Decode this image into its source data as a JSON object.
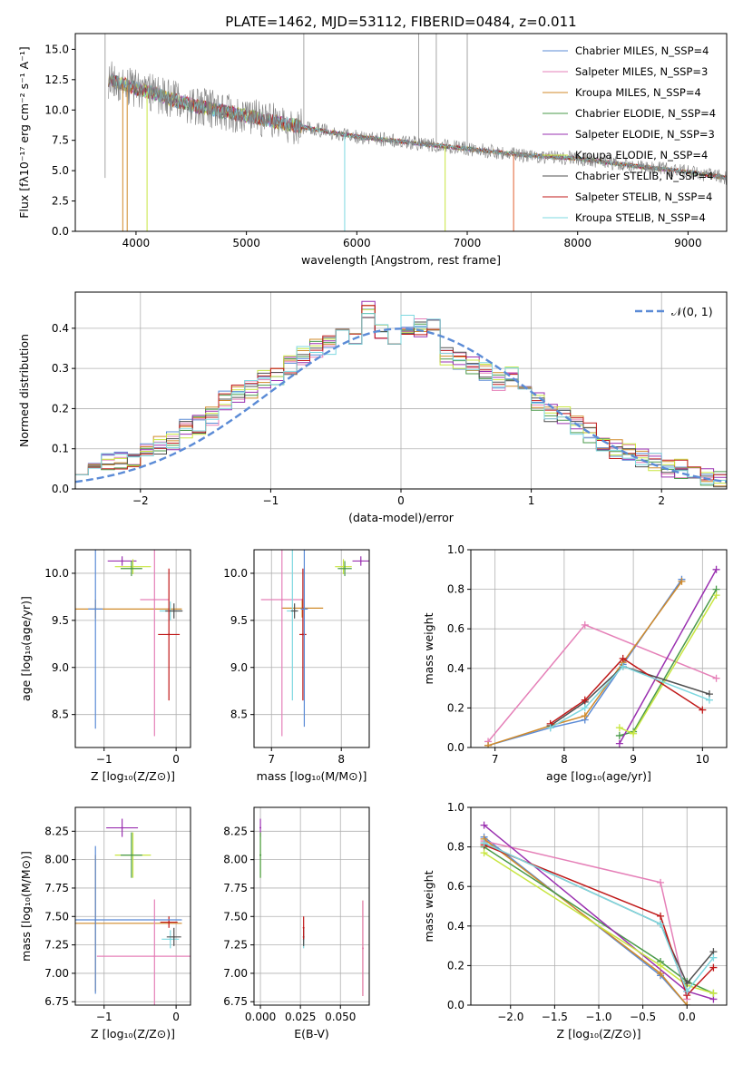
{
  "chart_data": [
    {
      "id": "spectrum",
      "type": "line",
      "title": "PLATE=1462, MJD=53112, FIBERID=0484, z=0.011",
      "xlabel": "wavelength [Angstrom, rest frame]",
      "ylabel": "Flux [fλ10⁻¹⁷ erg cm⁻² s⁻¹ A⁻¹]",
      "xlim": [
        3450,
        9350
      ],
      "ylim": [
        0,
        16.3
      ],
      "xticks": [
        4000,
        5000,
        6000,
        7000,
        8000,
        9000
      ],
      "yticks": [
        0.0,
        2.5,
        5.0,
        7.5,
        10.0,
        12.5,
        15.0
      ],
      "legend_position": "top-right",
      "data_envelope": {
        "x": [
          3750,
          4000,
          4500,
          5000,
          5500,
          6000,
          6500,
          7000,
          7500,
          8000,
          8500,
          9000,
          9350
        ],
        "y": [
          12.5,
          11.8,
          10.4,
          9.5,
          8.6,
          7.8,
          7.3,
          6.8,
          6.3,
          6.0,
          5.4,
          4.9,
          4.4
        ]
      },
      "series": [
        {
          "name": "Chabrier MILES, N_SSP=4",
          "color": "#5b8bd6"
        },
        {
          "name": "Salpeter MILES, N_SSP=3",
          "color": "#e580b8"
        },
        {
          "name": "Kroupa MILES, N_SSP=4",
          "color": "#d08a2a"
        },
        {
          "name": "Chabrier ELODIE, N_SSP=4",
          "color": "#4a9a4a"
        },
        {
          "name": "Salpeter ELODIE, N_SSP=3",
          "color": "#9a30b0"
        },
        {
          "name": "Kroupa ELODIE, N_SSP=4",
          "color": "#c8e640"
        },
        {
          "name": "Chabrier STELIB, N_SSP=4",
          "color": "#505050"
        },
        {
          "name": "Salpeter STELIB, N_SSP=4",
          "color": "#c01a1a"
        },
        {
          "name": "Kroupa STELIB, N_SSP=4",
          "color": "#7ed8e0"
        }
      ]
    },
    {
      "id": "residuals",
      "type": "line",
      "xlabel": "(data-model)/error",
      "ylabel": "Normed distribution",
      "xlim": [
        -2.5,
        2.5
      ],
      "ylim": [
        0,
        0.49
      ],
      "xticks": [
        -2,
        -1,
        0,
        1,
        2
      ],
      "yticks": [
        0.0,
        0.1,
        0.2,
        0.3,
        0.4
      ],
      "legend": "𝒩(0, 1)",
      "legend_position": "top-right",
      "gaussian_color": "#5b8bd6",
      "hist_x": [
        -2.5,
        -2.4,
        -2.3,
        -2.2,
        -2.1,
        -2.0,
        -1.9,
        -1.8,
        -1.7,
        -1.6,
        -1.5,
        -1.4,
        -1.3,
        -1.2,
        -1.1,
        -1.0,
        -0.9,
        -0.8,
        -0.7,
        -0.6,
        -0.5,
        -0.4,
        -0.3,
        -0.2,
        -0.1,
        0.0,
        0.1,
        0.2,
        0.3,
        0.4,
        0.5,
        0.6,
        0.7,
        0.8,
        0.9,
        1.0,
        1.1,
        1.2,
        1.3,
        1.4,
        1.5,
        1.6,
        1.7,
        1.8,
        1.9,
        2.0,
        2.1,
        2.2,
        2.3,
        2.4
      ],
      "hist_y": [
        0.06,
        0.06,
        0.07,
        0.07,
        0.08,
        0.09,
        0.11,
        0.12,
        0.15,
        0.16,
        0.18,
        0.22,
        0.24,
        0.25,
        0.27,
        0.28,
        0.31,
        0.33,
        0.35,
        0.36,
        0.38,
        0.37,
        0.45,
        0.39,
        0.37,
        0.41,
        0.4,
        0.41,
        0.33,
        0.32,
        0.31,
        0.29,
        0.27,
        0.28,
        0.24,
        0.22,
        0.19,
        0.18,
        0.16,
        0.14,
        0.11,
        0.1,
        0.09,
        0.08,
        0.07,
        0.05,
        0.05,
        0.04,
        0.03,
        0.02
      ]
    },
    {
      "id": "age_vs_Z",
      "type": "scatter",
      "xlabel": "Z [log₁₀(Z/Z⊙)]",
      "ylabel": "age  [log₁₀(age/yr)]",
      "xlim": [
        -1.4,
        0.2
      ],
      "ylim": [
        8.15,
        10.25
      ],
      "xticks": [
        -1,
        0
      ],
      "yticks": [
        8.5,
        9.0,
        9.5,
        10.0
      ],
      "points": [
        {
          "x": -0.75,
          "y": 10.13,
          "xerr": 0.2,
          "yerr": 0.05,
          "color": "#9a30b0"
        },
        {
          "x": -0.6,
          "y": 10.07,
          "xerr": 0.25,
          "yerr": 0.08,
          "color": "#c8e640"
        },
        {
          "x": -0.62,
          "y": 10.05,
          "xerr": 0.15,
          "yerr": 0.08,
          "color": "#4a9a4a"
        },
        {
          "x": -1.12,
          "y": 9.62,
          "xerr": 1.2,
          "yerr": 0.1,
          "color": "#d08a2a"
        },
        {
          "x": -0.3,
          "y": 9.72,
          "xerr": 0.2,
          "yerr": 1.45,
          "color": "#e580b8"
        },
        {
          "x": -0.08,
          "y": 9.6,
          "xerr": 0.15,
          "yerr": 0.1,
          "color": "#7ed8e0"
        },
        {
          "x": -0.03,
          "y": 9.6,
          "xerr": 0.12,
          "yerr": 0.08,
          "color": "#505050"
        },
        {
          "x": -0.1,
          "y": 9.35,
          "xerr": 0.15,
          "yerr": 0.7,
          "color": "#c01a1a"
        },
        {
          "x": -1.12,
          "y": 9.62,
          "xerr": 0.1,
          "yerr": 1.27,
          "color": "#5b8bd6"
        }
      ]
    },
    {
      "id": "age_vs_mass",
      "type": "scatter",
      "xlabel": "mass [log₁₀(M/M⊙)]",
      "ylabel": "",
      "xlim": [
        6.75,
        8.4
      ],
      "ylim": [
        8.15,
        10.25
      ],
      "xticks": [
        7,
        8
      ],
      "yticks": [
        8.5,
        9.0,
        9.5,
        10.0
      ],
      "points": [
        {
          "x": 8.28,
          "y": 10.13,
          "xerr": 0.12,
          "yerr": 0.05,
          "color": "#9a30b0"
        },
        {
          "x": 8.03,
          "y": 10.07,
          "xerr": 0.12,
          "yerr": 0.08,
          "color": "#c8e640"
        },
        {
          "x": 8.05,
          "y": 10.05,
          "xerr": 0.1,
          "yerr": 0.08,
          "color": "#4a9a4a"
        },
        {
          "x": 7.44,
          "y": 9.63,
          "xerr": 0.3,
          "yerr": 0.1,
          "color": "#d08a2a"
        },
        {
          "x": 7.15,
          "y": 9.72,
          "xerr": 0.3,
          "yerr": 1.45,
          "color": "#e580b8"
        },
        {
          "x": 7.3,
          "y": 9.6,
          "xerr": 0.08,
          "yerr": 0.95,
          "color": "#7ed8e0"
        },
        {
          "x": 7.33,
          "y": 9.6,
          "xerr": 0.05,
          "yerr": 0.08,
          "color": "#505050"
        },
        {
          "x": 7.45,
          "y": 9.35,
          "xerr": 0.05,
          "yerr": 0.7,
          "color": "#c01a1a"
        },
        {
          "x": 7.47,
          "y": 9.62,
          "xerr": 0.05,
          "yerr": 1.25,
          "color": "#5b8bd6"
        }
      ]
    },
    {
      "id": "weight_vs_age",
      "type": "line",
      "xlabel": "age  [log₁₀(age/yr)]",
      "ylabel": "mass weight",
      "xlim": [
        6.65,
        10.35
      ],
      "ylim": [
        0,
        1
      ],
      "xticks": [
        7,
        8,
        9,
        10
      ],
      "yticks": [
        0.0,
        0.2,
        0.4,
        0.6,
        0.8,
        1.0
      ],
      "series": [
        {
          "color": "#5b8bd6",
          "x": [
            6.9,
            7.8,
            8.3,
            8.85,
            9.7
          ],
          "y": [
            0.01,
            0.1,
            0.14,
            0.42,
            0.85
          ]
        },
        {
          "color": "#e580b8",
          "x": [
            6.9,
            8.3,
            10.2
          ],
          "y": [
            0.03,
            0.62,
            0.35
          ]
        },
        {
          "color": "#d08a2a",
          "x": [
            6.9,
            7.8,
            8.3,
            8.85,
            9.7
          ],
          "y": [
            0.01,
            0.11,
            0.16,
            0.43,
            0.84
          ]
        },
        {
          "color": "#4a9a4a",
          "x": [
            8.8,
            9.0,
            10.2
          ],
          "y": [
            0.06,
            0.08,
            0.8
          ]
        },
        {
          "color": "#9a30b0",
          "x": [
            8.8,
            10.2
          ],
          "y": [
            0.02,
            0.9
          ]
        },
        {
          "color": "#c8e640",
          "x": [
            8.8,
            9.0,
            10.2
          ],
          "y": [
            0.1,
            0.07,
            0.77
          ]
        },
        {
          "color": "#505050",
          "x": [
            7.8,
            8.3,
            8.85,
            10.1
          ],
          "y": [
            0.11,
            0.23,
            0.41,
            0.27
          ]
        },
        {
          "color": "#c01a1a",
          "x": [
            7.8,
            8.3,
            8.85,
            10.0
          ],
          "y": [
            0.12,
            0.24,
            0.45,
            0.19
          ]
        },
        {
          "color": "#7ed8e0",
          "x": [
            7.8,
            8.3,
            8.85,
            10.1
          ],
          "y": [
            0.1,
            0.2,
            0.41,
            0.24
          ]
        }
      ]
    },
    {
      "id": "mass_vs_Z",
      "type": "scatter",
      "xlabel": "Z [log₁₀(Z/Z⊙)]",
      "ylabel": "mass [log₁₀(M/M⊙)]",
      "xlim": [
        -1.4,
        0.2
      ],
      "ylim": [
        6.72,
        8.46
      ],
      "xticks": [
        -1,
        0
      ],
      "yticks": [
        6.75,
        7.0,
        7.25,
        7.5,
        7.75,
        8.0,
        8.25
      ],
      "points": [
        {
          "x": -0.75,
          "y": 8.28,
          "xerr": 0.22,
          "yerr": 0.08,
          "color": "#9a30b0"
        },
        {
          "x": -0.6,
          "y": 8.04,
          "xerr": 0.25,
          "yerr": 0.2,
          "color": "#c8e640"
        },
        {
          "x": -0.62,
          "y": 8.04,
          "xerr": 0.15,
          "yerr": 0.2,
          "color": "#4a9a4a"
        },
        {
          "x": -1.12,
          "y": 7.44,
          "xerr": 1.2,
          "yerr": 0.6,
          "color": "#d08a2a"
        },
        {
          "x": -0.3,
          "y": 7.15,
          "xerr": 0.8,
          "yerr": 0.5,
          "color": "#e580b8"
        },
        {
          "x": -0.08,
          "y": 7.3,
          "xerr": 0.12,
          "yerr": 0.08,
          "color": "#7ed8e0"
        },
        {
          "x": -0.03,
          "y": 7.32,
          "xerr": 0.1,
          "yerr": 0.08,
          "color": "#505050"
        },
        {
          "x": -0.1,
          "y": 7.45,
          "xerr": 0.12,
          "yerr": 0.05,
          "color": "#c01a1a"
        },
        {
          "x": -1.12,
          "y": 7.47,
          "xerr": 1.2,
          "yerr": 0.65,
          "color": "#5b8bd6"
        }
      ]
    },
    {
      "id": "mass_vs_ebv",
      "type": "scatter",
      "xlabel": "E(B-V)",
      "ylabel": "",
      "xlim": [
        -0.004,
        0.068
      ],
      "ylim": [
        6.72,
        8.46
      ],
      "xticks": [
        0.0,
        0.025,
        0.05
      ],
      "tick_labels": [
        "0.000",
        "0.025",
        "0.050"
      ],
      "yticks": [
        6.75,
        7.0,
        7.25,
        7.5,
        7.75,
        8.0,
        8.25
      ],
      "points": [
        {
          "x": 0.0,
          "y": 8.28,
          "yerr": 0.08,
          "color": "#9a30b0"
        },
        {
          "x": 0.0,
          "y": 8.04,
          "yerr": 0.2,
          "color": "#c8e640"
        },
        {
          "x": 0.0,
          "y": 8.04,
          "yerr": 0.2,
          "color": "#4a9a4a"
        },
        {
          "x": 0.027,
          "y": 7.3,
          "yerr": 0.08,
          "color": "#7ed8e0"
        },
        {
          "x": 0.027,
          "y": 7.32,
          "yerr": 0.08,
          "color": "#505050"
        },
        {
          "x": 0.027,
          "y": 7.4,
          "yerr": 0.1,
          "color": "#c01a1a"
        },
        {
          "x": 0.064,
          "y": 7.22,
          "yerr": 0.42,
          "color": "#d08a2a"
        },
        {
          "x": 0.064,
          "y": 7.22,
          "yerr": 0.42,
          "color": "#e580b8"
        }
      ]
    },
    {
      "id": "weight_vs_Z",
      "type": "line",
      "xlabel": "Z [log₁₀(Z/Z⊙)]",
      "ylabel": "mass weight",
      "xlim": [
        -2.45,
        0.45
      ],
      "ylim": [
        0,
        1
      ],
      "xticks": [
        -2.0,
        -1.5,
        -1.0,
        -0.5,
        0.0
      ],
      "tick_labels": [
        "−2.0",
        "−1.5",
        "−1.0",
        "−0.5",
        "0.0"
      ],
      "yticks": [
        0.0,
        0.2,
        0.4,
        0.6,
        0.8,
        1.0
      ],
      "series": [
        {
          "color": "#5b8bd6",
          "x": [
            -2.3,
            -0.3,
            0.0
          ],
          "y": [
            0.85,
            0.15,
            0.0
          ]
        },
        {
          "color": "#e580b8",
          "x": [
            -2.3,
            -0.3,
            0.0
          ],
          "y": [
            0.83,
            0.62,
            0.03
          ]
        },
        {
          "color": "#d08a2a",
          "x": [
            -2.3,
            -0.3,
            0.0
          ],
          "y": [
            0.84,
            0.16,
            0.0
          ]
        },
        {
          "color": "#4a9a4a",
          "x": [
            -2.3,
            -0.3,
            0.0,
            0.3
          ],
          "y": [
            0.8,
            0.22,
            0.12,
            0.06
          ]
        },
        {
          "color": "#9a30b0",
          "x": [
            -2.3,
            0.0,
            0.3
          ],
          "y": [
            0.91,
            0.07,
            0.03
          ]
        },
        {
          "color": "#c8e640",
          "x": [
            -2.3,
            -0.3,
            0.0,
            0.3
          ],
          "y": [
            0.77,
            0.2,
            0.1,
            0.06
          ]
        },
        {
          "color": "#505050",
          "x": [
            -2.3,
            -0.3,
            0.0,
            0.3
          ],
          "y": [
            0.82,
            0.41,
            0.11,
            0.27
          ]
        },
        {
          "color": "#c01a1a",
          "x": [
            -2.3,
            -0.3,
            0.0,
            0.3
          ],
          "y": [
            0.81,
            0.45,
            0.05,
            0.19
          ]
        },
        {
          "color": "#7ed8e0",
          "x": [
            -2.3,
            -0.3,
            0.0,
            0.3
          ],
          "y": [
            0.82,
            0.41,
            0.07,
            0.24
          ]
        }
      ]
    }
  ]
}
